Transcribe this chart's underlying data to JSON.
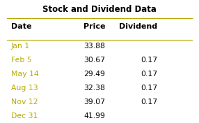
{
  "title": "Stock and Dividend Data",
  "col_headers": [
    "Date",
    "Price",
    "Dividend"
  ],
  "rows": [
    [
      "Jan 1",
      "33.88",
      ""
    ],
    [
      "Feb 5",
      "30.67",
      "0.17"
    ],
    [
      "May 14",
      "29.49",
      "0.17"
    ],
    [
      "Aug 13",
      "32.38",
      "0.17"
    ],
    [
      "Nov 12",
      "39.07",
      "0.17"
    ],
    [
      "Dec 31",
      "41.99",
      ""
    ]
  ],
  "line_color": "#b8a900",
  "date_color": "#b8a900",
  "text_color": "#000000",
  "bg_color": "#ffffff",
  "title_fontsize": 8.5,
  "header_fontsize": 8.0,
  "row_fontsize": 7.8
}
